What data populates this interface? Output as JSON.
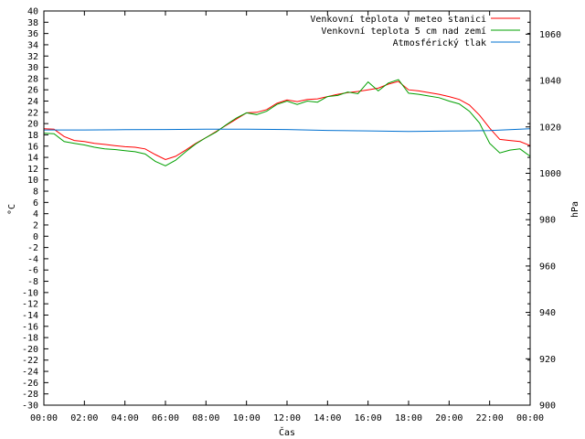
{
  "chart_data": {
    "type": "line",
    "xlabel": "Čas",
    "ylabel": "°C",
    "y2label": "hPa",
    "xlim": [
      0,
      24
    ],
    "ylim": [
      -30,
      40
    ],
    "y2lim": [
      900,
      1070
    ],
    "grid": false,
    "legend_position": "top-right",
    "x_ticks": [
      "00:00",
      "02:00",
      "04:00",
      "06:00",
      "08:00",
      "10:00",
      "12:00",
      "14:00",
      "16:00",
      "18:00",
      "20:00",
      "22:00",
      "00:00"
    ],
    "y_ticks": [
      40,
      38,
      36,
      34,
      32,
      30,
      28,
      26,
      24,
      22,
      20,
      18,
      16,
      14,
      12,
      10,
      8,
      6,
      4,
      2,
      0,
      -2,
      -4,
      -6,
      -8,
      -10,
      -12,
      -14,
      -16,
      -18,
      -20,
      -22,
      -24,
      -26,
      -28,
      -30
    ],
    "y2_ticks": [
      1060,
      1040,
      1020,
      1000,
      980,
      960,
      940,
      920,
      900
    ],
    "series": [
      {
        "name": "Venkovní teplota v meteo stanici",
        "color": "#ff0000",
        "axis": "left",
        "x": [
          0,
          0.5,
          1,
          1.5,
          2,
          2.5,
          3,
          3.5,
          4,
          4.5,
          5,
          5.5,
          6,
          6.5,
          7,
          7.5,
          8,
          8.5,
          9,
          9.5,
          10,
          10.5,
          11,
          11.5,
          12,
          12.5,
          13,
          13.5,
          14,
          14.5,
          15,
          15.5,
          16,
          16.5,
          17,
          17.5,
          18,
          18.5,
          19,
          19.5,
          20,
          20.5,
          21,
          21.5,
          22,
          22.5,
          23,
          23.5,
          24
        ],
        "values": [
          19.1,
          19.0,
          17.7,
          17.0,
          16.8,
          16.5,
          16.3,
          16.1,
          15.9,
          15.8,
          15.5,
          14.5,
          13.6,
          14.2,
          15.3,
          16.5,
          17.5,
          18.6,
          19.7,
          20.8,
          21.9,
          22.0,
          22.5,
          23.6,
          24.2,
          23.9,
          24.3,
          24.4,
          24.8,
          25.2,
          25.5,
          25.7,
          26.0,
          26.3,
          27.0,
          27.5,
          26.0,
          25.8,
          25.5,
          25.2,
          24.8,
          24.3,
          23.3,
          21.5,
          19.2,
          17.2,
          17.0,
          16.8,
          16.1
        ]
      },
      {
        "name": "Venkovní teplota 5 cm nad zemí",
        "color": "#00a000",
        "axis": "left",
        "x": [
          0,
          0.5,
          1,
          1.5,
          2,
          2.5,
          3,
          3.5,
          4,
          4.5,
          5,
          5.5,
          6,
          6.5,
          7,
          7.5,
          8,
          8.5,
          9,
          9.5,
          10,
          10.5,
          11,
          11.5,
          12,
          12.5,
          13,
          13.5,
          14,
          14.5,
          15,
          15.5,
          16,
          16.5,
          17,
          17.5,
          18,
          18.5,
          19,
          19.5,
          20,
          20.5,
          21,
          21.5,
          22,
          22.5,
          23,
          23.5,
          24
        ],
        "values": [
          18.3,
          18.2,
          16.8,
          16.5,
          16.2,
          15.8,
          15.5,
          15.4,
          15.2,
          15.0,
          14.6,
          13.3,
          12.5,
          13.5,
          15.0,
          16.4,
          17.5,
          18.5,
          19.8,
          21.0,
          21.9,
          21.6,
          22.2,
          23.4,
          24.0,
          23.4,
          24.0,
          23.8,
          24.8,
          25.0,
          25.6,
          25.3,
          27.4,
          25.8,
          27.2,
          27.8,
          25.4,
          25.2,
          24.9,
          24.6,
          24.0,
          23.5,
          22.2,
          20.1,
          16.5,
          14.8,
          15.3,
          15.5,
          14.2
        ]
      },
      {
        "name": "Atmosférický tlak",
        "color": "#0070d0",
        "axis": "right",
        "x": [
          0,
          2,
          4,
          6,
          8,
          10,
          12,
          14,
          16,
          18,
          20,
          22,
          23,
          24
        ],
        "values": [
          1018.7,
          1018.7,
          1018.8,
          1018.9,
          1019.0,
          1019.0,
          1018.9,
          1018.5,
          1018.3,
          1018.0,
          1018.2,
          1018.4,
          1018.8,
          1019.2
        ]
      }
    ]
  }
}
